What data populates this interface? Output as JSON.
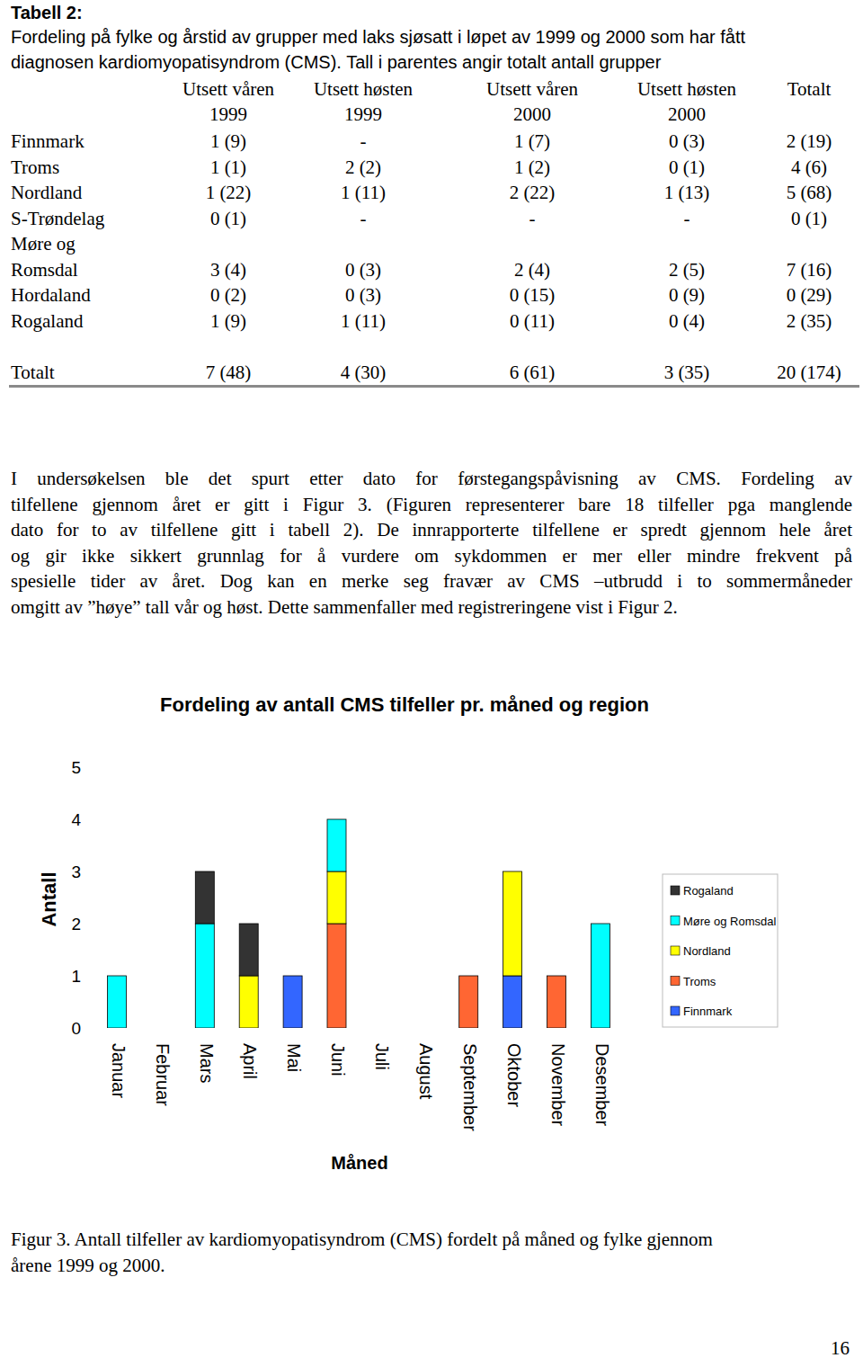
{
  "table_caption": {
    "label": "Tabell 2:",
    "lines": [
      "Fordeling på fylke og årstid av grupper med laks sjøsatt i løpet av 1999 og 2000 som har fått",
      "diagnosen kardiomyopatisyndrom (CMS). Tall i parentes angir totalt antall grupper"
    ]
  },
  "table": {
    "header": [
      [
        "Utsett våren",
        "1999"
      ],
      [
        "Utsett høsten",
        "1999"
      ],
      [
        "Utsett våren",
        "2000"
      ],
      [
        "Utsett høsten",
        "2000"
      ],
      [
        "Totalt"
      ]
    ],
    "rows": [
      {
        "label": [
          "Finnmark"
        ],
        "cells": [
          "1 (9)",
          "-",
          "1 (7)",
          "0 (3)",
          "2 (19)"
        ]
      },
      {
        "label": [
          "Troms"
        ],
        "cells": [
          "1 (1)",
          "2 (2)",
          "1 (2)",
          "0 (1)",
          "4 (6)"
        ]
      },
      {
        "label": [
          "Nordland"
        ],
        "cells": [
          "1 (22)",
          "1 (11)",
          "2 (22)",
          "1 (13)",
          "5 (68)"
        ]
      },
      {
        "label": [
          "S-Trøndelag"
        ],
        "cells": [
          "0 (1)",
          "-",
          "-",
          "-",
          "0 (1)"
        ]
      },
      {
        "label": [
          "Møre og",
          "Romsdal"
        ],
        "cells": [
          "3 (4)",
          "0 (3)",
          "2 (4)",
          "2 (5)",
          "7 (16)"
        ]
      },
      {
        "label": [
          "Hordaland"
        ],
        "cells": [
          "0 (2)",
          "0 (3)",
          "0 (15)",
          "0 (9)",
          "0 (29)"
        ]
      },
      {
        "label": [
          "Rogaland"
        ],
        "cells": [
          "1 (9)",
          "1 (11)",
          "0 (11)",
          "0 (4)",
          "2 (35)"
        ]
      }
    ],
    "total_row": {
      "label": [
        "Totalt"
      ],
      "cells": [
        "7 (48)",
        "4 (30)",
        "6 (61)",
        "3 (35)",
        "20 (174)"
      ]
    }
  },
  "paragraph": [
    "I undersøkelsen ble det spurt etter dato for førstegangspåvisning av CMS. Fordeling av",
    "tilfellene gjennom året er gitt i Figur 3. (Figuren representerer bare 18 tilfeller pga manglende",
    "dato for to av tilfellene gitt i tabell 2). De innrapporterte tilfellene er spredt gjennom hele året",
    "og gir ikke sikkert grunnlag for å vurdere om sykdommen er mer eller mindre frekvent på",
    "spesielle tider av året. Dog kan en merke seg fravær av CMS –utbrudd i to sommermåneder",
    "omgitt av ”høye” tall vår og høst. Dette sammenfaller med registreringene vist i Figur 2."
  ],
  "chart_data": {
    "type": "bar",
    "stacked": true,
    "title": "Fordeling av antall CMS tilfeller pr. måned og region",
    "x_label": "Måned",
    "y_label": "Antall",
    "categories": [
      "Januar",
      "Februar",
      "Mars",
      "April",
      "Mai",
      "Juni",
      "Juli",
      "August",
      "September",
      "Oktober",
      "November",
      "Desember"
    ],
    "series": [
      {
        "name": "Finnmark",
        "color": "#3366ff",
        "values": [
          0,
          0,
          0,
          0,
          1,
          0,
          0,
          0,
          0,
          1,
          0,
          0
        ]
      },
      {
        "name": "Troms",
        "color": "#ff6633",
        "values": [
          0,
          0,
          0,
          0,
          0,
          2,
          0,
          0,
          1,
          0,
          1,
          0
        ]
      },
      {
        "name": "Nordland",
        "color": "#ffff00",
        "values": [
          0,
          0,
          0,
          1,
          0,
          1,
          0,
          0,
          0,
          2,
          0,
          0
        ]
      },
      {
        "name": "Møre og Romsdal",
        "color": "#00ffff",
        "values": [
          1,
          0,
          2,
          0,
          0,
          1,
          0,
          0,
          0,
          0,
          0,
          2
        ]
      },
      {
        "name": "Rogaland",
        "color": "#333333",
        "values": [
          0,
          0,
          1,
          1,
          0,
          0,
          0,
          0,
          0,
          0,
          0,
          0
        ]
      }
    ],
    "ylim": [
      0,
      5
    ],
    "yticks": [
      0,
      1,
      2,
      3,
      4,
      5
    ],
    "grid": false,
    "legend": "right"
  },
  "figure_caption": [
    "Figur 3. Antall tilfeller av kardiomyopatisyndrom (CMS) fordelt på måned og fylke gjennom",
    "årene 1999 og 2000."
  ],
  "page_number": "16"
}
